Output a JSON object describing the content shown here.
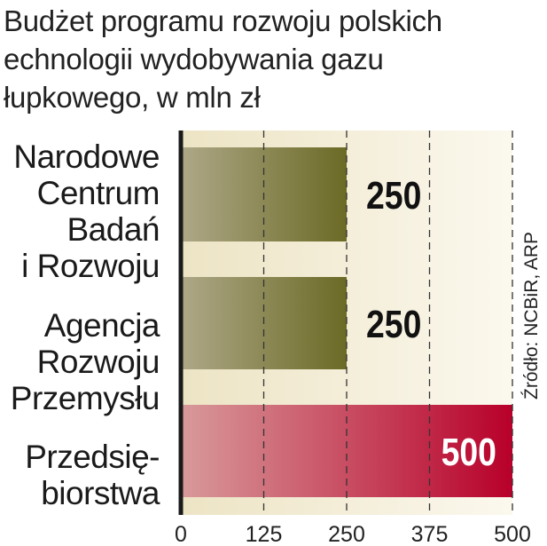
{
  "title": "Budżet programu rozwoju polskich\nechnologii wydobywania gazu\nłupkowego, w mln zł",
  "source": "Źródło: NCBiR, ARP",
  "colors": {
    "plot_bg_start": "#ede4c4",
    "plot_bg_end": "#fbf8ee",
    "olive_start": "#aea888",
    "olive_end": "#6b6a25",
    "red_start": "#d89a9a",
    "red_end": "#b8002a",
    "axis": "#1a1a1a",
    "grid": "#333333"
  },
  "chart_data": {
    "type": "bar",
    "orientation": "horizontal",
    "title": "Budżet programu rozwoju polskich\nechnologii wydobywania gazu\nłupkowego, w mln zł",
    "categories": [
      "Narodowe\nCentrum\nBadań\ni Rozwoju",
      "Agencja\nRozwoju\nPrzemysłu",
      "Przedsię-\nbiorstwa"
    ],
    "values": [
      250,
      250,
      500
    ],
    "data_labels": [
      "250",
      "250",
      "500"
    ],
    "xlim": [
      0,
      500
    ],
    "x_ticks": [
      0,
      125,
      250,
      375,
      500
    ],
    "x_tick_labels": [
      "0",
      "125",
      "250",
      "375",
      "500"
    ],
    "grid": "vertical dashed",
    "legend": "none"
  }
}
